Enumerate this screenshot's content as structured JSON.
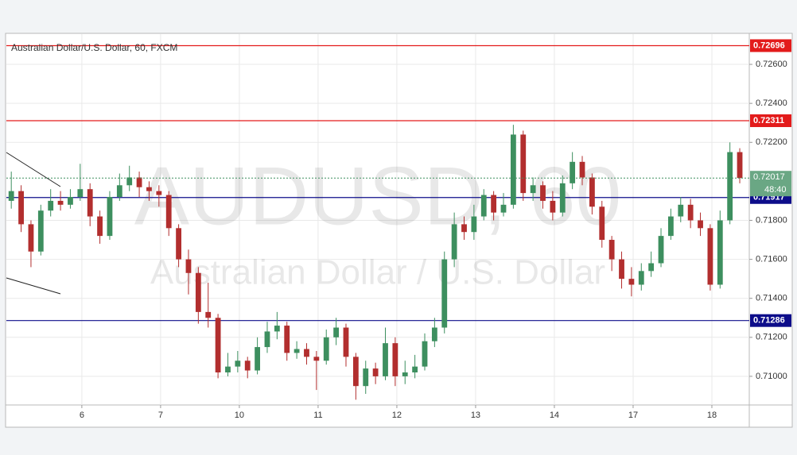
{
  "chart_data": {
    "type": "candlestick",
    "title": "Australian Dollar/U.S. Dollar, 60, FXCM",
    "watermark": "AUDUSD, 60",
    "watermark_subtitle": "Australian Dollar / U.S. Dollar",
    "x": [
      1.5,
      4.5,
      7.5,
      10.5,
      13.5,
      16.5,
      19.5,
      22.5,
      25.5,
      28.5,
      31.5,
      34.5,
      37.5,
      40.5,
      43.5,
      46.5,
      49.5,
      52.5,
      55.5,
      58.5,
      61.5,
      64.5,
      67.5,
      70.5,
      73.5,
      76.5,
      79.5,
      82.5,
      85.5,
      88.5,
      91.5,
      94.5,
      97.5,
      100.5,
      103.5,
      106.5,
      109.5,
      112.5,
      115.5,
      118.5,
      121.5,
      124.5,
      127.5,
      130.5,
      133.5,
      136.5,
      139.5,
      142.5,
      145.5,
      148.5,
      151.5,
      154.5,
      157.5,
      160.5,
      163.5,
      166.5,
      169.5,
      172.5,
      175.5,
      178.5,
      181.5,
      184.5,
      187.5,
      190.5,
      193.5,
      196.5,
      199.5,
      202.5,
      205.5,
      208.5,
      211.5,
      214.5,
      217.5,
      220.5,
      223.5
    ],
    "open": [
      0.719,
      0.7195,
      0.7178,
      0.7164,
      0.7185,
      0.719,
      0.7188,
      0.7192,
      0.7196,
      0.7182,
      0.7172,
      0.7192,
      0.7198,
      0.7202,
      0.7197,
      0.7195,
      0.7193,
      0.7176,
      0.716,
      0.7153,
      0.7133,
      0.713,
      0.7102,
      0.7105,
      0.7108,
      0.7103,
      0.7115,
      0.7123,
      0.7126,
      0.7112,
      0.7114,
      0.711,
      0.7108,
      0.712,
      0.7125,
      0.711,
      0.7095,
      0.7104,
      0.71,
      0.7117,
      0.71,
      0.7102,
      0.7105,
      0.7118,
      0.7125,
      0.716,
      0.7178,
      0.7174,
      0.7182,
      0.7193,
      0.7184,
      0.7188,
      0.7224,
      0.7194,
      0.7198,
      0.719,
      0.7184,
      0.7199,
      0.721,
      0.7202,
      0.7187,
      0.717,
      0.716,
      0.715,
      0.7147,
      0.7154,
      0.7158,
      0.7172,
      0.7182,
      0.7188,
      0.718,
      0.7176,
      0.7147,
      0.718,
      0.7215
    ],
    "high": [
      0.7205,
      0.7198,
      0.718,
      0.7188,
      0.7196,
      0.7195,
      0.7196,
      0.7209,
      0.7199,
      0.7185,
      0.7195,
      0.7204,
      0.7208,
      0.7205,
      0.72,
      0.7198,
      0.7195,
      0.7178,
      0.7165,
      0.7156,
      0.7148,
      0.7132,
      0.7112,
      0.7113,
      0.711,
      0.712,
      0.7128,
      0.7133,
      0.7128,
      0.7118,
      0.7117,
      0.7113,
      0.7124,
      0.713,
      0.7127,
      0.7112,
      0.7108,
      0.7107,
      0.7125,
      0.712,
      0.7108,
      0.7111,
      0.7122,
      0.713,
      0.7164,
      0.7184,
      0.7182,
      0.7188,
      0.7196,
      0.7195,
      0.7194,
      0.7229,
      0.7226,
      0.7202,
      0.72,
      0.7195,
      0.7203,
      0.7215,
      0.7213,
      0.7204,
      0.719,
      0.7172,
      0.7164,
      0.7156,
      0.7158,
      0.7164,
      0.7176,
      0.7186,
      0.7192,
      0.7191,
      0.7184,
      0.7178,
      0.7185,
      0.722,
      0.7217
    ],
    "low": [
      0.7186,
      0.7174,
      0.7156,
      0.7162,
      0.7182,
      0.7185,
      0.7186,
      0.719,
      0.7177,
      0.7168,
      0.717,
      0.719,
      0.7195,
      0.7192,
      0.719,
      0.7187,
      0.7172,
      0.7156,
      0.7142,
      0.7127,
      0.7125,
      0.7099,
      0.71,
      0.7102,
      0.7099,
      0.7101,
      0.7112,
      0.7119,
      0.7108,
      0.7109,
      0.7106,
      0.7093,
      0.7106,
      0.7116,
      0.7105,
      0.7088,
      0.7091,
      0.7096,
      0.7098,
      0.7095,
      0.7096,
      0.7099,
      0.7103,
      0.7115,
      0.7122,
      0.7156,
      0.717,
      0.717,
      0.718,
      0.718,
      0.7182,
      0.7186,
      0.719,
      0.719,
      0.7186,
      0.718,
      0.7182,
      0.7196,
      0.7198,
      0.7183,
      0.7166,
      0.7154,
      0.7145,
      0.7141,
      0.7144,
      0.7151,
      0.7156,
      0.717,
      0.7179,
      0.7176,
      0.7172,
      0.7144,
      0.7145,
      0.7178,
      0.7199
    ],
    "close": [
      0.7195,
      0.7178,
      0.7164,
      0.7185,
      0.719,
      0.7188,
      0.7192,
      0.7196,
      0.7182,
      0.7172,
      0.7192,
      0.7198,
      0.7202,
      0.7197,
      0.7195,
      0.7193,
      0.7176,
      0.716,
      0.7153,
      0.7133,
      0.713,
      0.7102,
      0.7105,
      0.7108,
      0.7103,
      0.7115,
      0.7123,
      0.7126,
      0.7112,
      0.7114,
      0.711,
      0.7108,
      0.712,
      0.7125,
      0.711,
      0.7095,
      0.7104,
      0.71,
      0.7117,
      0.71,
      0.7102,
      0.7105,
      0.7118,
      0.7125,
      0.716,
      0.7178,
      0.7174,
      0.7182,
      0.7193,
      0.7184,
      0.7188,
      0.7224,
      0.7194,
      0.7198,
      0.719,
      0.7184,
      0.7199,
      0.721,
      0.7202,
      0.7187,
      0.717,
      0.716,
      0.715,
      0.7147,
      0.7154,
      0.7158,
      0.7172,
      0.7182,
      0.7188,
      0.718,
      0.7176,
      0.7147,
      0.718,
      0.7215,
      0.72017
    ],
    "up_color": "#3d8f5f",
    "down_color": "#b22e2e",
    "xlim": [
      0,
      226.4
    ],
    "xticks": [
      {
        "value": 23,
        "label": "6"
      },
      {
        "value": 47,
        "label": "7"
      },
      {
        "value": 71,
        "label": "10"
      },
      {
        "value": 95,
        "label": "11"
      },
      {
        "value": 119,
        "label": "12"
      },
      {
        "value": 143,
        "label": "13"
      },
      {
        "value": 167,
        "label": "14"
      },
      {
        "value": 191,
        "label": "17"
      },
      {
        "value": 215,
        "label": "18"
      }
    ],
    "ylim": [
      0.70853,
      0.72755
    ],
    "yticks": [
      {
        "value": 0.71,
        "label": "0.71000"
      },
      {
        "value": 0.712,
        "label": "0.71200"
      },
      {
        "value": 0.714,
        "label": "0.71400"
      },
      {
        "value": 0.716,
        "label": "0.71600"
      },
      {
        "value": 0.718,
        "label": "0.71800"
      },
      {
        "value": 0.722,
        "label": "0.72200"
      },
      {
        "value": 0.724,
        "label": "0.72400"
      },
      {
        "value": 0.726,
        "label": "0.72600"
      }
    ],
    "grid": true,
    "levels": [
      {
        "value": 0.72696,
        "color": "#e31b1b"
      },
      {
        "value": 0.72311,
        "color": "#e31b1b"
      },
      {
        "value": 0.71917,
        "color": "#0d0d8a"
      },
      {
        "value": 0.71286,
        "color": "#0d0d8a"
      }
    ],
    "countdown": "48:40"
  }
}
